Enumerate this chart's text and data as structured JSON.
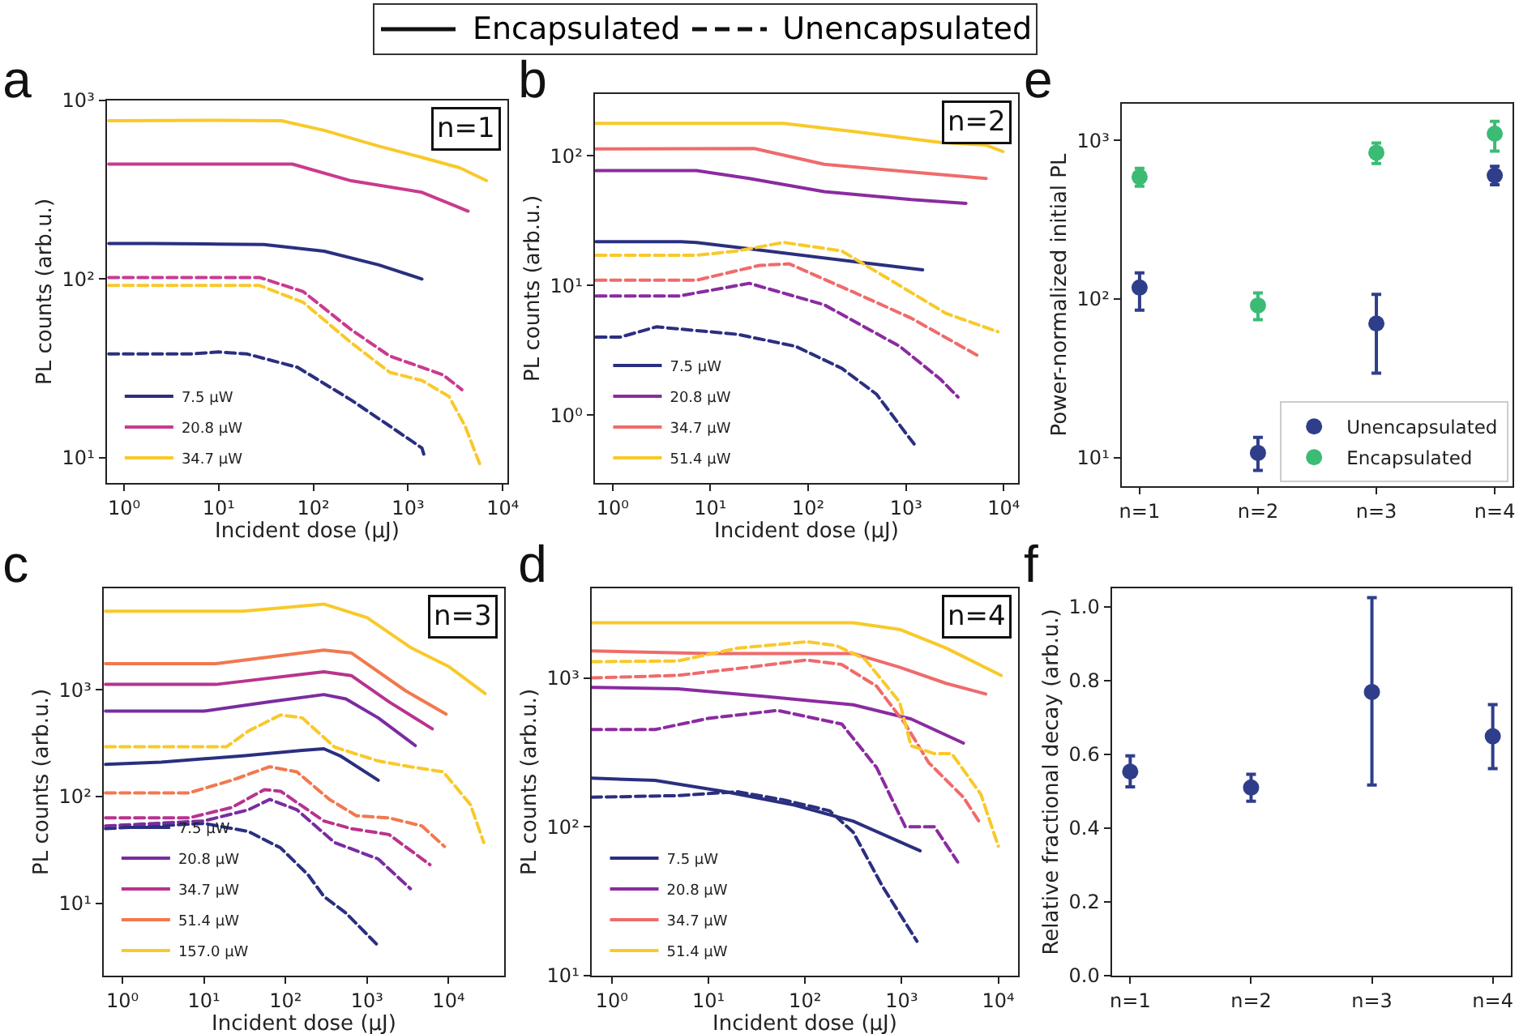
{
  "chart_data": [
    {
      "type": "line",
      "title": "a",
      "xlabel": "Incident dose (μJ)",
      "ylabel": "PL counts (arb.u.)",
      "annotations": [
        "n=1",
        "Encapsulated",
        "Unencapsulated"
      ],
      "log": "xy",
      "marker": "none",
      "legend": "bottom left",
      "grid": false,
      "xlim": [
        0.66,
        11200
      ],
      "ylim": [
        7.2,
        1000
      ],
      "xticks": [
        {
          "value": 1,
          "label": "10⁰"
        },
        {
          "value": 10,
          "label": "10¹"
        },
        {
          "value": 100,
          "label": "10²"
        },
        {
          "value": 1000,
          "label": "10³"
        },
        {
          "value": 10000,
          "label": "10⁴"
        }
      ],
      "yticks": [
        {
          "value": 10,
          "label": "10¹"
        },
        {
          "value": 100,
          "label": "10²"
        },
        {
          "value": 1000,
          "label": "10³"
        }
      ],
      "series": [
        {
          "name": "7.5 μW",
          "color": "#2b2f80",
          "line_style": "solid",
          "x": [
            0.69,
            2,
            10,
            30,
            130,
            490,
            1400
          ],
          "values": [
            158,
            158,
            157,
            156,
            143,
            120,
            100
          ]
        },
        {
          "name": "20.8 μW",
          "color": "#c93b8e",
          "line_style": "solid",
          "x": [
            0.69,
            10,
            60,
            250,
            1400,
            4300
          ],
          "values": [
            440,
            440,
            440,
            355,
            306,
            240
          ]
        },
        {
          "name": "34.7 μW",
          "color": "#f8c92a",
          "line_style": "solid",
          "x": [
            0.69,
            10,
            46,
            130,
            490,
            1400,
            3500,
            6700
          ],
          "values": [
            770,
            775,
            770,
            680,
            555,
            480,
            420,
            356
          ]
        },
        {
          "color": "#2b2f80",
          "line_style": "dashed",
          "x": [
            0.69,
            5,
            10,
            20,
            68,
            250,
            640,
            1400,
            1500
          ],
          "values": [
            38,
            38,
            39,
            38,
            32,
            21,
            15,
            11.3,
            10
          ]
        },
        {
          "color": "#c93b8e",
          "line_style": "dashed",
          "x": [
            0.69,
            10,
            27,
            78,
            250,
            640,
            1400,
            2350,
            3700
          ],
          "values": [
            102,
            102,
            102,
            85,
            52,
            37,
            32,
            29,
            24
          ]
        },
        {
          "color": "#f8c92a",
          "line_style": "dashed",
          "x": [
            0.69,
            10,
            27,
            78,
            250,
            640,
            1400,
            2700,
            4000,
            5900
          ],
          "values": [
            92,
            92,
            92,
            74,
            44,
            30,
            27,
            22,
            15,
            8.8
          ]
        }
      ]
    },
    {
      "type": "line",
      "title": "b",
      "xlabel": "Incident dose (μJ)",
      "ylabel": "PL counts (arb.u.)",
      "annotations": [
        "n=2"
      ],
      "log": "xy",
      "marker": "none",
      "legend": "bottom left",
      "grid": false,
      "xlim": [
        0.66,
        14000
      ],
      "ylim": [
        0.3,
        300
      ],
      "xticks": [
        {
          "value": 1,
          "label": "10⁰"
        },
        {
          "value": 10,
          "label": "10¹"
        },
        {
          "value": 100,
          "label": "10²"
        },
        {
          "value": 1000,
          "label": "10³"
        },
        {
          "value": 10000,
          "label": "10⁴"
        }
      ],
      "yticks": [
        {
          "value": 1,
          "label": "10⁰"
        },
        {
          "value": 10,
          "label": "10¹"
        },
        {
          "value": 100,
          "label": "10²"
        }
      ],
      "series": [
        {
          "name": "7.5 μW",
          "color": "#2b2f80",
          "line_style": "solid",
          "x": [
            0.68,
            5,
            7.2,
            37,
            290,
            1480
          ],
          "values": [
            21.8,
            21.8,
            21.5,
            18.5,
            15.3,
            13.2
          ]
        },
        {
          "name": "20.8 μW",
          "color": "#8a2ba0",
          "line_style": "solid",
          "x": [
            0.68,
            7.2,
            25,
            146,
            1130,
            4100
          ],
          "values": [
            77,
            77,
            67,
            53,
            46,
            43
          ]
        },
        {
          "name": "34.7 μW",
          "color": "#ef6b6b",
          "line_style": "solid",
          "x": [
            0.68,
            28,
            146,
            1130,
            6600
          ],
          "values": [
            113,
            114,
            86,
            75,
            67
          ]
        },
        {
          "name": "51.4 μW",
          "color": "#f8c92a",
          "line_style": "solid",
          "x": [
            0.68,
            56,
            290,
            2240,
            6600,
            9800
          ],
          "values": [
            178,
            178,
            154,
            127,
            121,
            108
          ]
        },
        {
          "color": "#2b2f80",
          "line_style": "dashed",
          "x": [
            0.68,
            1.2,
            2.8,
            19,
            74,
            220,
            500,
            990,
            1210
          ],
          "values": [
            4.0,
            4.0,
            4.8,
            4.2,
            3.4,
            2.3,
            1.45,
            0.73,
            0.6
          ]
        },
        {
          "color": "#8a2ba0",
          "line_style": "dashed",
          "x": [
            0.68,
            4.8,
            25,
            146,
            860,
            2240,
            3400
          ],
          "values": [
            8.3,
            8.3,
            10.4,
            7.1,
            3.4,
            1.9,
            1.38
          ]
        },
        {
          "color": "#ef6b6b",
          "line_style": "dashed",
          "x": [
            0.68,
            7.2,
            32,
            64,
            290,
            1130,
            5800
          ],
          "values": [
            11,
            11,
            14.3,
            14.7,
            8.9,
            5.6,
            2.8
          ]
        },
        {
          "color": "#f8c92a",
          "line_style": "dashed",
          "x": [
            0.68,
            7.2,
            19,
            56,
            220,
            860,
            2560,
            8700
          ],
          "values": [
            17.1,
            17.1,
            18.5,
            21.5,
            18.5,
            10,
            6.1,
            4.4
          ]
        }
      ]
    },
    {
      "type": "line",
      "title": "c",
      "xlabel": "Incident dose (μJ)",
      "ylabel": "PL counts (arb.u.)",
      "annotations": [
        "n=3"
      ],
      "log": "xy",
      "marker": "none",
      "legend": "bottom left",
      "grid": false,
      "xlim": [
        0.59,
        48000
      ],
      "ylim": [
        2.1,
        8900
      ],
      "xticks": [
        {
          "value": 1,
          "label": "10⁰"
        },
        {
          "value": 10,
          "label": "10¹"
        },
        {
          "value": 100,
          "label": "10²"
        },
        {
          "value": 1000,
          "label": "10³"
        },
        {
          "value": 10000,
          "label": "10⁴"
        }
      ],
      "yticks": [
        {
          "value": 10,
          "label": "10¹"
        },
        {
          "value": 100,
          "label": "10²"
        },
        {
          "value": 1000,
          "label": "10³"
        }
      ],
      "series": [
        {
          "name": "7.5 μW",
          "color": "#2b2f80",
          "line_style": "solid",
          "x": [
            0.62,
            3,
            30,
            160,
            295,
            470,
            1370
          ],
          "values": [
            200,
            210,
            240,
            270,
            280,
            240,
            142
          ]
        },
        {
          "name": "20.8 μW",
          "color": "#7a2ca0",
          "line_style": "solid",
          "x": [
            0.62,
            10,
            64,
            295,
            550,
            1370,
            3900
          ],
          "values": [
            630,
            630,
            770,
            900,
            820,
            545,
            300
          ]
        },
        {
          "name": "34.7 μW",
          "color": "#b8338e",
          "line_style": "solid",
          "x": [
            0.62,
            14,
            295,
            640,
            1860,
            6300
          ],
          "values": [
            1120,
            1120,
            1470,
            1355,
            770,
            430
          ]
        },
        {
          "name": "51.4 μW",
          "color": "#f2784f",
          "line_style": "solid",
          "x": [
            0.62,
            14,
            87,
            295,
            640,
            2950,
            9300
          ],
          "values": [
            1750,
            1750,
            2090,
            2350,
            2210,
            980,
            590
          ]
        },
        {
          "name": "157.0 μW",
          "color": "#f8c92a",
          "line_style": "solid",
          "x": [
            0.62,
            30,
            295,
            1000,
            3400,
            10000,
            28000
          ],
          "values": [
            5440,
            5440,
            6340,
            4730,
            2490,
            1650,
            920
          ]
        },
        {
          "color": "#2b2f80",
          "line_style": "dashed",
          "x": [
            0.62,
            10,
            35,
            87,
            190,
            295,
            550,
            1370
          ],
          "values": [
            50,
            56,
            47,
            33,
            18.4,
            11.6,
            8.1,
            4.0
          ]
        },
        {
          "color": "#7a2ca0",
          "line_style": "dashed",
          "x": [
            0.62,
            10,
            35,
            64,
            138,
            400,
            1370,
            3400
          ],
          "values": [
            53,
            59,
            75,
            94,
            75,
            37,
            26,
            13.7
          ]
        },
        {
          "color": "#b8338e",
          "line_style": "dashed",
          "x": [
            0.62,
            6.5,
            22,
            55,
            87,
            295,
            640,
            1860,
            5900
          ],
          "values": [
            63,
            63,
            79,
            116,
            112,
            59,
            50,
            44,
            23
          ]
        },
        {
          "color": "#f2784f",
          "line_style": "dashed",
          "x": [
            0.62,
            6.5,
            22,
            64,
            138,
            345,
            740,
            1860,
            4700,
            8900
          ],
          "values": [
            108,
            108,
            142,
            190,
            170,
            94,
            66,
            63,
            53,
            34
          ]
        },
        {
          "color": "#f8c92a",
          "line_style": "dashed",
          "x": [
            0.62,
            19,
            35,
            87,
            160,
            400,
            1370,
            3400,
            8600,
            18500,
            27000
          ],
          "values": [
            293,
            293,
            410,
            580,
            545,
            290,
            215,
            190,
            170,
            84,
            37
          ]
        }
      ]
    },
    {
      "type": "line",
      "title": "d",
      "xlabel": "Incident dose (μJ)",
      "ylabel": "PL counts (arb.u.)",
      "annotations": [
        "n=4"
      ],
      "log": "xy",
      "marker": "none",
      "legend": "bottom left",
      "grid": false,
      "xlim": [
        0.62,
        16000
      ],
      "ylim": [
        10,
        4000
      ],
      "xticks": [
        {
          "value": 1,
          "label": "10⁰"
        },
        {
          "value": 10,
          "label": "10¹"
        },
        {
          "value": 100,
          "label": "10²"
        },
        {
          "value": 1000,
          "label": "10³"
        },
        {
          "value": 10000,
          "label": "10⁴"
        }
      ],
      "yticks": [
        {
          "value": 10,
          "label": "10¹"
        },
        {
          "value": 100,
          "label": "10²"
        },
        {
          "value": 1000,
          "label": "10³"
        }
      ],
      "series": [
        {
          "name": "7.5 μW",
          "color": "#2b2f80",
          "line_style": "solid",
          "x": [
            0.62,
            2.8,
            15,
            78,
            315,
            1550
          ],
          "values": [
            212,
            205,
            172,
            140,
            109,
            69
          ]
        },
        {
          "name": "20.8 μW",
          "color": "#8a2ba0",
          "line_style": "solid",
          "x": [
            0.62,
            4.8,
            39,
            315,
            1250,
            4350
          ],
          "values": [
            865,
            845,
            750,
            660,
            530,
            365
          ]
        },
        {
          "name": "34.7 μW",
          "color": "#ef6b6b",
          "line_style": "solid",
          "x": [
            0.62,
            10,
            315,
            950,
            2870,
            7400
          ],
          "values": [
            1520,
            1460,
            1460,
            1180,
            920,
            780
          ]
        },
        {
          "name": "51.4 μW",
          "color": "#f8c92a",
          "line_style": "solid",
          "x": [
            0.62,
            315,
            950,
            2870,
            10700
          ],
          "values": [
            2350,
            2350,
            2120,
            1590,
            1040
          ]
        },
        {
          "color": "#2b2f80",
          "line_style": "dashed",
          "x": [
            0.62,
            4.8,
            20,
            59,
            180,
            315,
            630,
            1440
          ],
          "values": [
            158,
            162,
            172,
            152,
            128,
            92,
            40,
            17
          ]
        },
        {
          "color": "#8a2ba0",
          "line_style": "dashed",
          "x": [
            0.62,
            2.8,
            10,
            52,
            240,
            550,
            1090,
            2180,
            3800
          ],
          "values": [
            450,
            450,
            535,
            605,
            490,
            250,
            100,
            100,
            58
          ]
        },
        {
          "color": "#ef6b6b",
          "line_style": "dashed",
          "x": [
            0.62,
            4.8,
            26,
            104,
            240,
            550,
            1090,
            1900,
            4350,
            6600
          ],
          "values": [
            1000,
            1040,
            1180,
            1320,
            1230,
            880,
            490,
            270,
            158,
            104
          ]
        },
        {
          "color": "#f8c92a",
          "line_style": "dashed",
          "x": [
            0.62,
            4.8,
            20,
            104,
            210,
            415,
            950,
            1250,
            2180,
            3300,
            6600,
            10000
          ],
          "values": [
            1285,
            1300,
            1585,
            1750,
            1650,
            1340,
            690,
            350,
            310,
            310,
            165,
            74
          ]
        }
      ]
    },
    {
      "type": "scatter",
      "title": "e",
      "ylabel": "Power-normalized initial PL",
      "log": "y",
      "marker": "circle",
      "legend": "bottom right",
      "grid": false,
      "categories": [
        "n=1",
        "n=2",
        "n=3",
        "n=4"
      ],
      "ylim": [
        6.6,
        1700
      ],
      "yticks": [
        {
          "value": 10,
          "label": "10¹"
        },
        {
          "value": 100,
          "label": "10²"
        },
        {
          "value": 1000,
          "label": "10³"
        }
      ],
      "series": [
        {
          "name": "Unencapsulated",
          "color": "#2f3e8a",
          "values": [
            118,
            10.7,
            70,
            600
          ],
          "errors": [
            [
              85,
              146
            ],
            [
              8.3,
              13.4
            ],
            [
              34,
              107
            ],
            [
              525,
              685
            ]
          ]
        },
        {
          "name": "Encapsulated",
          "color": "#3cbb75",
          "values": [
            587,
            91,
            835,
            1100
          ],
          "errors": [
            [
              513,
              665
            ],
            [
              74,
              109
            ],
            [
              714,
              960
            ],
            [
              855,
              1315
            ]
          ]
        }
      ]
    },
    {
      "type": "scatter",
      "title": "f",
      "ylabel": "Relative fractional decay (arb.u.)",
      "marker": "circle",
      "grid": false,
      "categories": [
        "n=1",
        "n=2",
        "n=3",
        "n=4"
      ],
      "ylim": [
        0,
        1.05
      ],
      "yticks": [
        {
          "value": 0,
          "label": "0.0"
        },
        {
          "value": 0.2,
          "label": "0.2"
        },
        {
          "value": 0.4,
          "label": "0.4"
        },
        {
          "value": 0.6,
          "label": "0.6"
        },
        {
          "value": 0.8,
          "label": "0.8"
        },
        {
          "value": 1.0,
          "label": "1.0"
        }
      ],
      "series": [
        {
          "color": "#2f3e8a",
          "values": [
            0.553,
            0.51,
            0.769,
            0.649
          ],
          "errors": [
            [
              0.512,
              0.596
            ],
            [
              0.473,
              0.546
            ],
            [
              0.517,
              1.025
            ],
            [
              0.561,
              0.735
            ]
          ]
        }
      ]
    }
  ]
}
